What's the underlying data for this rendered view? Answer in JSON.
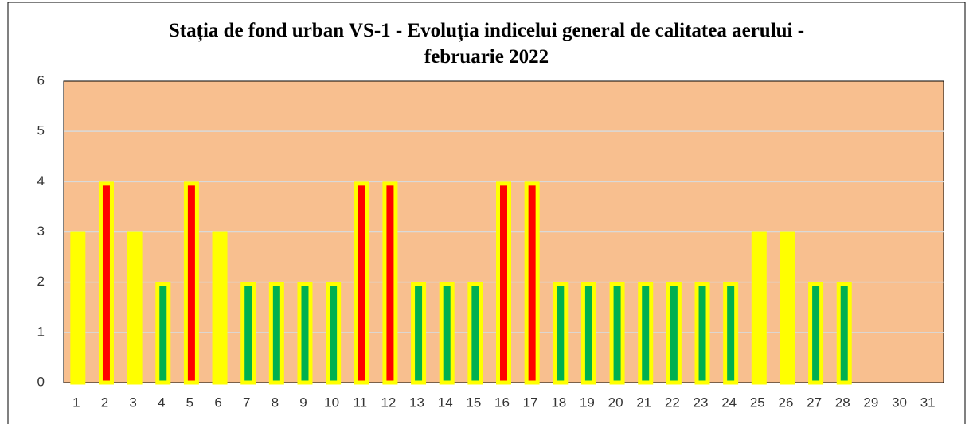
{
  "chart_data": {
    "type": "bar",
    "title": "Stația de fond urban VS-1 - Evoluția indicelui general de calitatea aerului - februarie 2022",
    "categories": [
      "1",
      "2",
      "3",
      "4",
      "5",
      "6",
      "7",
      "8",
      "9",
      "10",
      "11",
      "12",
      "13",
      "14",
      "15",
      "16",
      "17",
      "18",
      "19",
      "20",
      "21",
      "22",
      "23",
      "24",
      "25",
      "26",
      "27",
      "28",
      "29",
      "30",
      "31"
    ],
    "values": [
      3,
      4,
      3,
      2,
      4,
      3,
      2,
      2,
      2,
      2,
      4,
      4,
      2,
      2,
      2,
      4,
      4,
      2,
      2,
      2,
      2,
      2,
      2,
      2,
      3,
      3,
      2,
      2,
      null,
      null,
      null
    ],
    "colors": [
      "#ffff00",
      "#ff0000",
      "#ffff00",
      "#00b050",
      "#ff0000",
      "#ffff00",
      "#00b050",
      "#00b050",
      "#00b050",
      "#00b050",
      "#ff0000",
      "#ff0000",
      "#00b050",
      "#00b050",
      "#00b050",
      "#ff0000",
      "#ff0000",
      "#00b050",
      "#00b050",
      "#00b050",
      "#00b050",
      "#00b050",
      "#00b050",
      "#00b050",
      "#ffff00",
      "#ffff00",
      "#00b050",
      "#00b050",
      null,
      null,
      null
    ],
    "edge_color": "#ffff00",
    "plot_background": "#f8bf8f",
    "ylim": [
      0,
      6
    ],
    "yticks": [
      0,
      1,
      2,
      3,
      4,
      5,
      6
    ],
    "grid": true
  }
}
